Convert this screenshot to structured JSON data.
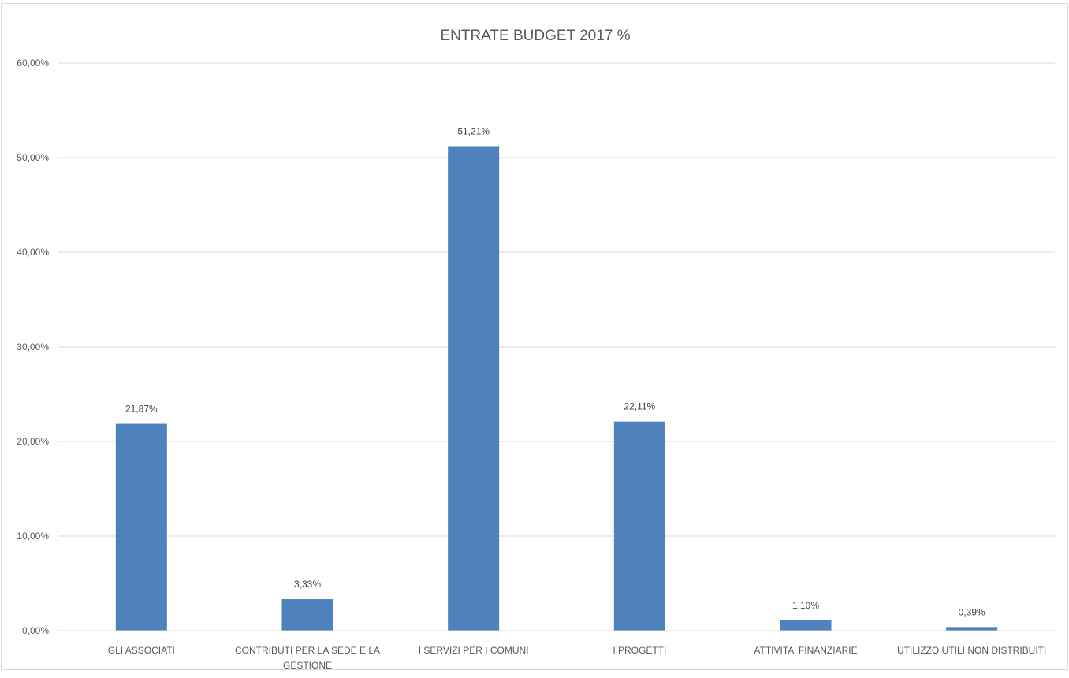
{
  "chart_data": {
    "type": "bar",
    "title": "ENTRATE BUDGET 2017 %",
    "xlabel": "",
    "ylabel": "",
    "ylim": [
      0,
      60
    ],
    "yticks": [
      0,
      10,
      20,
      30,
      40,
      50,
      60
    ],
    "ytick_labels": [
      "0,00%",
      "10,00%",
      "20,00%",
      "30,00%",
      "40,00%",
      "50,00%",
      "60,00%"
    ],
    "grid": true,
    "legend": "none",
    "bar_color": "#4f81bd",
    "categories": [
      [
        "GLI ASSOCIATI"
      ],
      [
        "CONTRIBUTI PER LA SEDE E LA",
        "GESTIONE"
      ],
      [
        "I SERVIZI PER I COMUNI"
      ],
      [
        "I PROGETTI"
      ],
      [
        "ATTIVITA' FINANZIARIE"
      ],
      [
        "UTILIZZO UTILI NON DISTRIBUITI"
      ]
    ],
    "values": [
      21.87,
      3.33,
      51.21,
      22.11,
      1.1,
      0.39
    ],
    "data_labels": [
      "21,87%",
      "3,33%",
      "51,21%",
      "22,11%",
      "1,10%",
      "0,39%"
    ]
  }
}
